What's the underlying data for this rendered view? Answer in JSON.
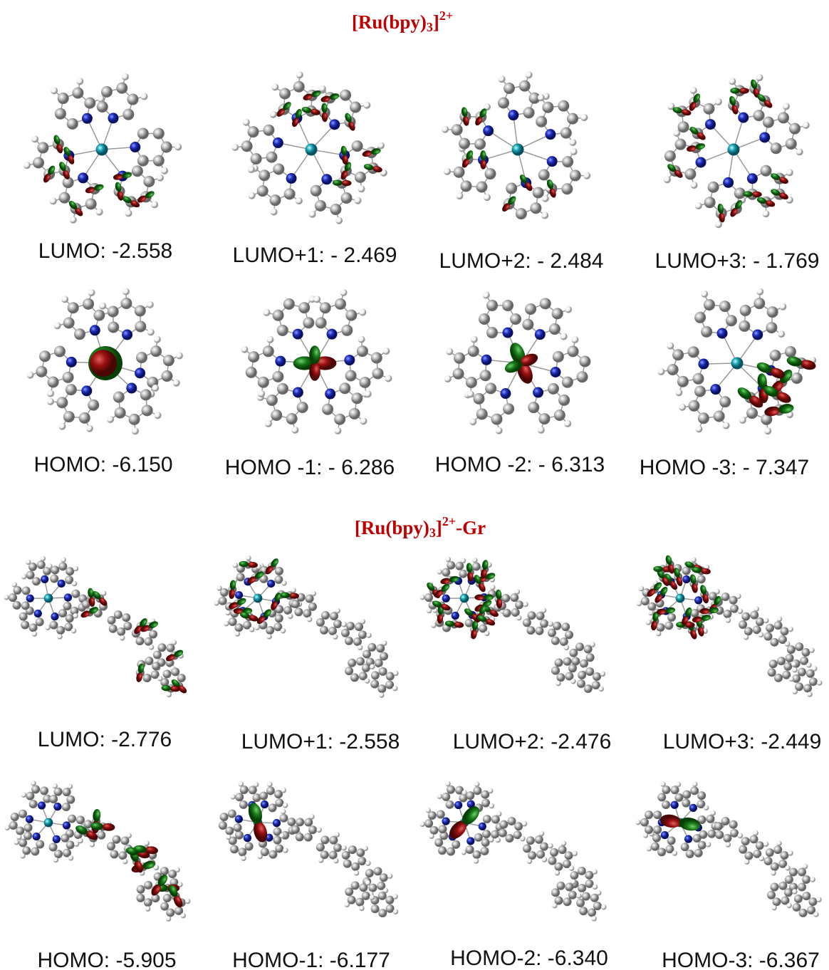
{
  "sections": [
    {
      "title": {
        "text": "[Ru(bpy)",
        "sub": "3",
        "close": "]",
        "sup": "2+"
      },
      "panels": [
        {
          "label": "LUMO: -2.558"
        },
        {
          "label": "LUMO+1: - 2.469"
        },
        {
          "label": "LUMO+2: - 2.484"
        },
        {
          "label": "LUMO+3: - 1.769"
        },
        {
          "label": "HOMO: -6.150"
        },
        {
          "label": "HOMO -1: - 6.286"
        },
        {
          "label": "HOMO -2: - 6.313"
        },
        {
          "label": "HOMO -3: - 7.347"
        }
      ]
    },
    {
      "title": {
        "text": "[Ru(bpy)",
        "sub": "3",
        "close": "]",
        "sup": "2+",
        "tail": "-Gr"
      },
      "panels": [
        {
          "label": "LUMO: -2.776"
        },
        {
          "label": "LUMO+1: -2.558"
        },
        {
          "label": "LUMO+2: -2.476"
        },
        {
          "label": "LUMO+3: -2.449"
        },
        {
          "label": "HOMO: -5.905"
        },
        {
          "label": "HOMO-1: -6.177"
        },
        {
          "label": "HOMO-2: -6.340"
        },
        {
          "label": "HOMO-3: -6.367"
        }
      ]
    }
  ]
}
